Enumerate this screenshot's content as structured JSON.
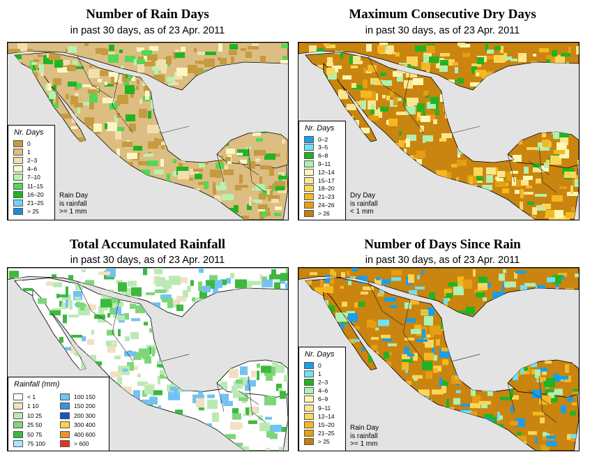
{
  "panels": [
    {
      "id": "rain-days",
      "title": "Number of Rain Days",
      "subtitle": "in past 30 days, as of  23 Apr. 2011",
      "legend_title": "Nr. Days",
      "legend": [
        {
          "label": "0",
          "color": "#c69a3e"
        },
        {
          "label": "1",
          "color": "#dcbd82"
        },
        {
          "label": "2–3",
          "color": "#f3dfae"
        },
        {
          "label": "4–6",
          "color": "#fbf7c4"
        },
        {
          "label": "7–10",
          "color": "#b6f2b0"
        },
        {
          "label": "11–15",
          "color": "#52d852"
        },
        {
          "label": "16–20",
          "color": "#22b322"
        },
        {
          "label": "21–25",
          "color": "#6ad8f2"
        },
        {
          "label": "> 25",
          "color": "#1a8ce0"
        }
      ],
      "note": [
        "Rain Day",
        "is rainfall",
        ">= 1 mm"
      ],
      "land_color": "#dcbd82",
      "patch_colors": [
        "#c69a3e",
        "#c69a3e",
        "#c69a3e",
        "#f3dfae",
        "#fbf7c4",
        "#52d852",
        "#b6f2b0",
        "#22b322"
      ]
    },
    {
      "id": "max-dry-days",
      "title": "Maximum Consecutive Dry Days",
      "subtitle": "in past 30 days, as of  23 Apr. 2011",
      "legend_title": "Nr. Days",
      "legend": [
        {
          "label": "0–2",
          "color": "#1a9ee8"
        },
        {
          "label": "3–5",
          "color": "#6fe2f5"
        },
        {
          "label": "6–8",
          "color": "#22b322"
        },
        {
          "label": "9–11",
          "color": "#b0f0b0"
        },
        {
          "label": "12–14",
          "color": "#fcf7b6"
        },
        {
          "label": "15–17",
          "color": "#fde690"
        },
        {
          "label": "18–20",
          "color": "#fcd65a"
        },
        {
          "label": "21–23",
          "color": "#f6b821"
        },
        {
          "label": "24–26",
          "color": "#e69e12"
        },
        {
          "label": "> 26",
          "color": "#c27e0e"
        }
      ],
      "note": [
        "Dry Day",
        "is rainfall",
        "< 1 mm"
      ],
      "land_color": "#c98510",
      "patch_colors": [
        "#f6b821",
        "#fcd65a",
        "#fde690",
        "#fcf7b6",
        "#22b322",
        "#b0f0b0",
        "#e69e12"
      ]
    },
    {
      "id": "total-rainfall",
      "title": "Total Accumulated Rainfall",
      "subtitle": "in past 30 days, as of  23 Apr. 2011",
      "legend_title": "Rainfall (mm)",
      "legend": [
        {
          "label": "< 1",
          "color": "#ffffff"
        },
        {
          "label": "1   10",
          "color": "#f1e0c2"
        },
        {
          "label": "10   25",
          "color": "#b9eab3"
        },
        {
          "label": "25   50",
          "color": "#7ed67a"
        },
        {
          "label": "50   75",
          "color": "#3eb83e"
        },
        {
          "label": "75   100",
          "color": "#a8e8f8"
        },
        {
          "label": "100   150",
          "color": "#72c2f2"
        },
        {
          "label": "150   200",
          "color": "#3d8ee8"
        },
        {
          "label": "200   300",
          "color": "#1557c8"
        },
        {
          "label": "300   400",
          "color": "#fbd34a"
        },
        {
          "label": "400   600",
          "color": "#f39220"
        },
        {
          "label": "> 600",
          "color": "#e8331b"
        }
      ],
      "note": [],
      "land_color": "#ffffff",
      "patch_colors": [
        "#f1e0c2",
        "#b9eab3",
        "#7ed67a",
        "#3eb83e",
        "#b9eab3",
        "#72c2f2"
      ]
    },
    {
      "id": "days-since-rain",
      "title": "Number of Days Since Rain",
      "subtitle": "in past 30 days, as of  23 Apr. 2011",
      "legend_title": "Nr. Days",
      "legend": [
        {
          "label": "0",
          "color": "#1a9ee8"
        },
        {
          "label": "1",
          "color": "#6fe2f5"
        },
        {
          "label": "2–3",
          "color": "#22b322"
        },
        {
          "label": "4–6",
          "color": "#b0f0b0"
        },
        {
          "label": "6–9",
          "color": "#fcf7b6"
        },
        {
          "label": "9–11",
          "color": "#fde690"
        },
        {
          "label": "12–14",
          "color": "#fcd65a"
        },
        {
          "label": "15–20",
          "color": "#f6b821"
        },
        {
          "label": "21–25",
          "color": "#e69e12"
        },
        {
          "label": "> 25",
          "color": "#c27e0e"
        }
      ],
      "note": [
        "Rain Day",
        "is rainfall",
        ">= 1 mm"
      ],
      "land_color": "#c98510",
      "patch_colors": [
        "#f6b821",
        "#e69e12",
        "#1a9ee8",
        "#6fe2f5",
        "#22b322",
        "#fcd65a",
        "#b0f0b0"
      ]
    }
  ]
}
